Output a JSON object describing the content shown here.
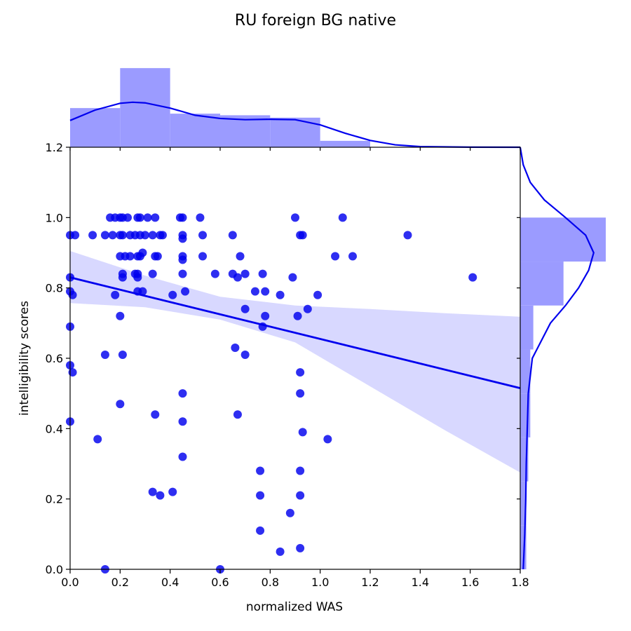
{
  "chart_data": {
    "type": "scatter",
    "title": "RU foreign BG native",
    "xlabel": "normalized WAS",
    "ylabel": "intelligibility scores",
    "xlim": [
      0.0,
      1.8
    ],
    "ylim": [
      0.0,
      1.2
    ],
    "xticks": [
      "0.0",
      "0.2",
      "0.4",
      "0.6",
      "0.8",
      "1.0",
      "1.2",
      "1.4",
      "1.6",
      "1.8"
    ],
    "yticks": [
      "0.0",
      "0.2",
      "0.4",
      "0.6",
      "0.8",
      "1.0",
      "1.2"
    ],
    "grid": false,
    "colors": {
      "points": "#0000ee",
      "line": "#0000ee",
      "ci_band": "#d8d8ff",
      "hist": "#9b9bff",
      "kde": "#0000ee"
    },
    "points": [
      [
        0.0,
        0.79
      ],
      [
        0.01,
        0.78
      ],
      [
        0.0,
        0.83
      ],
      [
        0.0,
        0.69
      ],
      [
        0.0,
        0.58
      ],
      [
        0.01,
        0.56
      ],
      [
        0.0,
        0.42
      ],
      [
        0.02,
        0.95
      ],
      [
        0.0,
        0.95
      ],
      [
        0.09,
        0.95
      ],
      [
        0.14,
        0.95
      ],
      [
        0.16,
        1.0
      ],
      [
        0.17,
        0.95
      ],
      [
        0.18,
        1.0
      ],
      [
        0.2,
        1.0
      ],
      [
        0.21,
        1.0
      ],
      [
        0.2,
        0.95
      ],
      [
        0.21,
        0.95
      ],
      [
        0.22,
        0.89
      ],
      [
        0.21,
        0.84
      ],
      [
        0.21,
        0.83
      ],
      [
        0.2,
        0.89
      ],
      [
        0.2,
        0.72
      ],
      [
        0.18,
        0.78
      ],
      [
        0.21,
        0.61
      ],
      [
        0.2,
        0.47
      ],
      [
        0.14,
        0.61
      ],
      [
        0.11,
        0.37
      ],
      [
        0.14,
        0.0
      ],
      [
        0.23,
        1.0
      ],
      [
        0.24,
        0.95
      ],
      [
        0.24,
        0.89
      ],
      [
        0.26,
        0.84
      ],
      [
        0.26,
        0.95
      ],
      [
        0.27,
        1.0
      ],
      [
        0.28,
        1.0
      ],
      [
        0.28,
        0.95
      ],
      [
        0.27,
        0.89
      ],
      [
        0.28,
        0.89
      ],
      [
        0.27,
        0.84
      ],
      [
        0.27,
        0.83
      ],
      [
        0.27,
        0.79
      ],
      [
        0.29,
        0.79
      ],
      [
        0.29,
        0.9
      ],
      [
        0.31,
        1.0
      ],
      [
        0.3,
        0.95
      ],
      [
        0.33,
        0.95
      ],
      [
        0.34,
        1.0
      ],
      [
        0.33,
        0.84
      ],
      [
        0.34,
        0.89
      ],
      [
        0.35,
        0.89
      ],
      [
        0.36,
        0.95
      ],
      [
        0.37,
        0.95
      ],
      [
        0.34,
        0.44
      ],
      [
        0.33,
        0.22
      ],
      [
        0.36,
        0.21
      ],
      [
        0.41,
        0.22
      ],
      [
        0.41,
        0.78
      ],
      [
        0.44,
        1.0
      ],
      [
        0.45,
        1.0
      ],
      [
        0.45,
        0.95
      ],
      [
        0.45,
        0.94
      ],
      [
        0.45,
        0.89
      ],
      [
        0.45,
        0.88
      ],
      [
        0.45,
        0.84
      ],
      [
        0.46,
        0.79
      ],
      [
        0.45,
        0.5
      ],
      [
        0.45,
        0.42
      ],
      [
        0.45,
        0.32
      ],
      [
        0.52,
        1.0
      ],
      [
        0.53,
        0.95
      ],
      [
        0.53,
        0.89
      ],
      [
        0.58,
        0.84
      ],
      [
        0.6,
        0.0
      ],
      [
        0.65,
        0.84
      ],
      [
        0.65,
        0.95
      ],
      [
        0.66,
        0.63
      ],
      [
        0.67,
        0.83
      ],
      [
        0.68,
        0.89
      ],
      [
        0.67,
        0.44
      ],
      [
        0.7,
        0.84
      ],
      [
        0.7,
        0.61
      ],
      [
        0.7,
        0.74
      ],
      [
        0.74,
        0.79
      ],
      [
        0.77,
        0.69
      ],
      [
        0.77,
        0.84
      ],
      [
        0.78,
        0.79
      ],
      [
        0.78,
        0.72
      ],
      [
        0.76,
        0.28
      ],
      [
        0.76,
        0.21
      ],
      [
        0.76,
        0.11
      ],
      [
        0.84,
        0.78
      ],
      [
        0.84,
        0.05
      ],
      [
        0.88,
        0.16
      ],
      [
        0.89,
        0.83
      ],
      [
        0.9,
        1.0
      ],
      [
        0.92,
        0.95
      ],
      [
        0.93,
        0.95
      ],
      [
        0.91,
        0.72
      ],
      [
        0.92,
        0.56
      ],
      [
        0.92,
        0.5
      ],
      [
        0.92,
        0.28
      ],
      [
        0.92,
        0.21
      ],
      [
        0.92,
        0.06
      ],
      [
        0.93,
        0.39
      ],
      [
        0.95,
        0.74
      ],
      [
        0.99,
        0.78
      ],
      [
        1.03,
        0.37
      ],
      [
        1.06,
        0.89
      ],
      [
        1.09,
        1.0
      ],
      [
        1.13,
        0.89
      ],
      [
        1.35,
        0.95
      ],
      [
        1.61,
        0.83
      ]
    ],
    "regression": {
      "x": [
        0.0,
        1.8
      ],
      "y": [
        0.83,
        0.515
      ]
    },
    "ci_band": {
      "x": [
        0.0,
        0.3,
        0.6,
        0.9,
        1.2,
        1.5,
        1.8
      ],
      "upper": [
        0.905,
        0.835,
        0.775,
        0.75,
        0.74,
        0.728,
        0.718
      ],
      "lower": [
        0.757,
        0.745,
        0.71,
        0.645,
        0.52,
        0.395,
        0.275
      ]
    },
    "x_hist": {
      "bins": [
        0.0,
        0.2,
        0.4,
        0.6,
        0.8,
        1.0,
        1.2,
        1.4,
        1.6,
        1.8
      ],
      "values": [
        0.49,
        0.99,
        0.42,
        0.4,
        0.37,
        0.08,
        0.0,
        0.0,
        0.0
      ]
    },
    "x_kde": {
      "x": [
        0.0,
        0.1,
        0.2,
        0.25,
        0.3,
        0.4,
        0.5,
        0.6,
        0.7,
        0.8,
        0.9,
        1.0,
        1.1,
        1.2,
        1.3,
        1.4,
        1.6,
        1.8
      ],
      "y": [
        0.335,
        0.465,
        0.55,
        0.563,
        0.555,
        0.49,
        0.4,
        0.36,
        0.345,
        0.35,
        0.345,
        0.28,
        0.175,
        0.085,
        0.03,
        0.008,
        0.001,
        0.0
      ]
    },
    "y_hist": {
      "bins": [
        0.0,
        0.125,
        0.25,
        0.375,
        0.5,
        0.625,
        0.75,
        0.875,
        1.0
      ],
      "values": [
        0.06,
        0.06,
        0.08,
        0.1,
        0.1,
        0.13,
        0.43,
        0.85
      ]
    },
    "y_kde": {
      "y": [
        0.0,
        0.1,
        0.2,
        0.3,
        0.4,
        0.5,
        0.6,
        0.7,
        0.75,
        0.8,
        0.85,
        0.9,
        0.95,
        1.0,
        1.05,
        1.1,
        1.15,
        1.2
      ],
      "x": [
        0.03,
        0.045,
        0.055,
        0.06,
        0.07,
        0.08,
        0.12,
        0.3,
        0.45,
        0.58,
        0.68,
        0.73,
        0.65,
        0.45,
        0.24,
        0.1,
        0.03,
        0.0
      ]
    }
  }
}
